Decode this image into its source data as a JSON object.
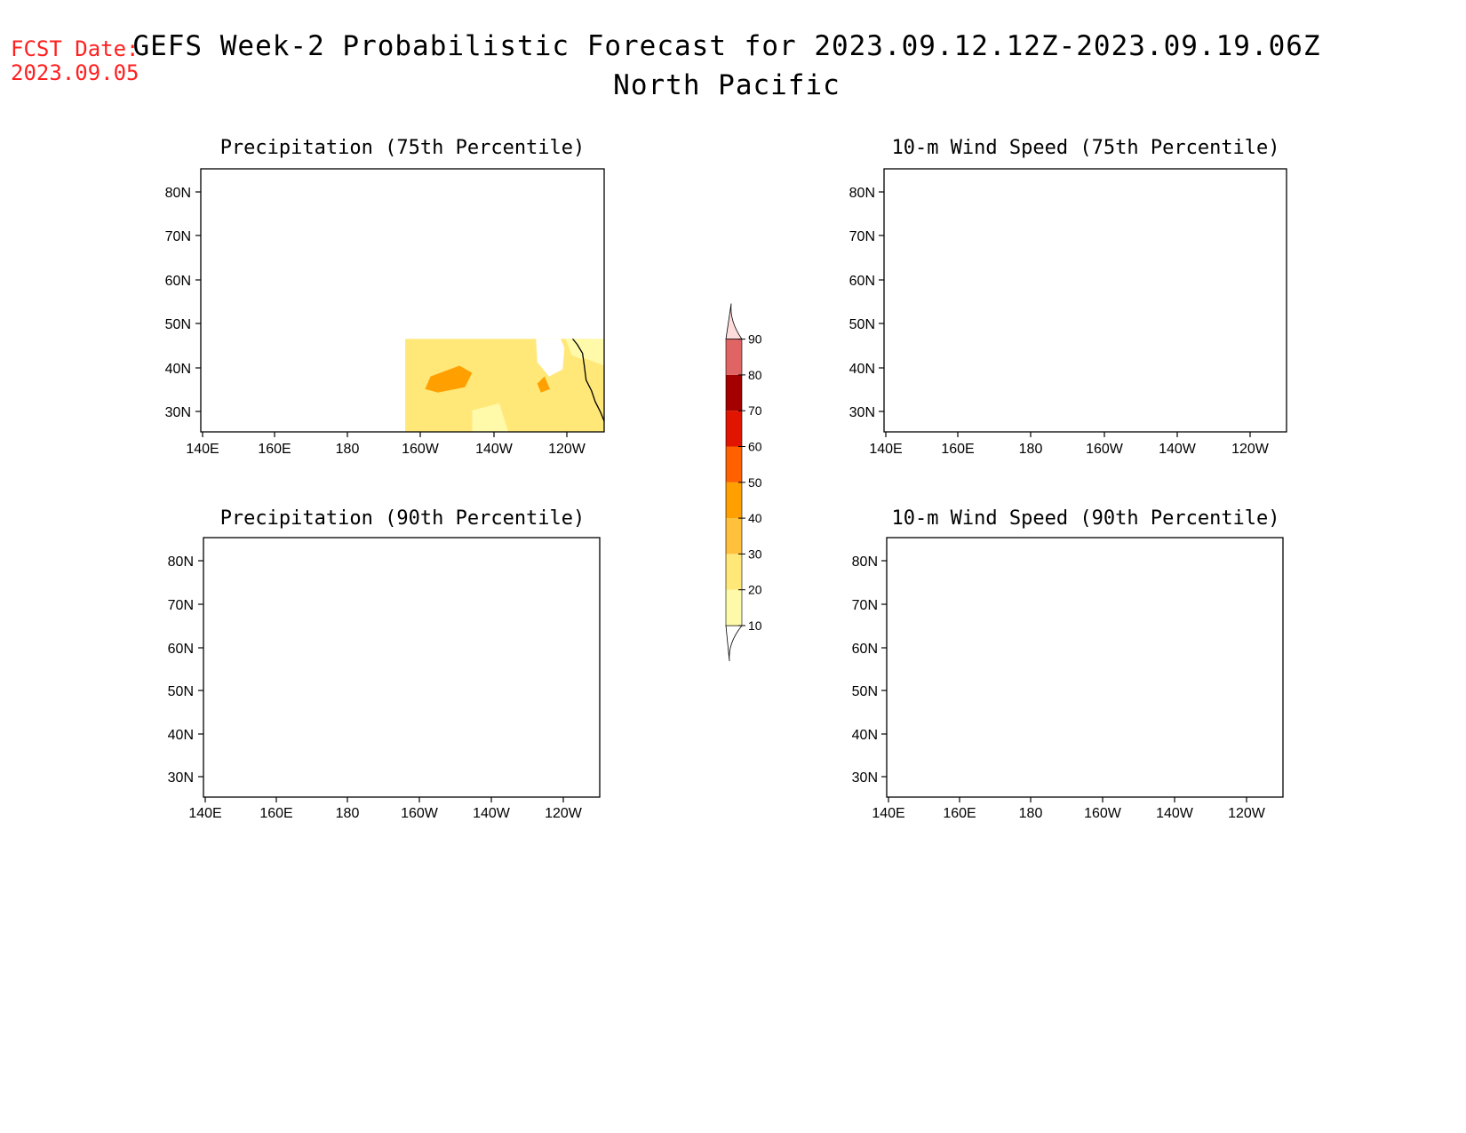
{
  "fcst_date_label": "FCST Date:",
  "fcst_date_value": "2023.09.05",
  "title_line1": "GEFS Week-2 Probabilistic Forecast for 2023.09.12.12Z-2023.09.19.06Z",
  "title_line2": "North Pacific",
  "colors": {
    "fcst_date": "#ff2020",
    "levels": [
      "#ffffff",
      "#fffaaa",
      "#ffe878",
      "#ffc03c",
      "#ffa000",
      "#ff6000",
      "#e11400",
      "#a50000",
      "#e16464",
      "#f5a0a0",
      "#ffdcdc"
    ]
  },
  "colorbar": {
    "labels": [
      "10",
      "20",
      "30",
      "40",
      "50",
      "60",
      "70",
      "80",
      "90"
    ]
  },
  "axes": {
    "lat_labels": [
      "80N",
      "70N",
      "60N",
      "50N",
      "40N",
      "30N"
    ],
    "lon_labels": [
      "140E",
      "160E",
      "180",
      "160W",
      "140W",
      "120W"
    ]
  },
  "panels": [
    {
      "id": "precip-75",
      "title": "Precipitation (75th Percentile)"
    },
    {
      "id": "wind-75",
      "title": "10-m Wind Speed (75th Percentile)"
    },
    {
      "id": "precip-90",
      "title": "Precipitation (90th Percentile)"
    },
    {
      "id": "wind-90",
      "title": "10-m Wind Speed (90th Percentile)"
    }
  ]
}
